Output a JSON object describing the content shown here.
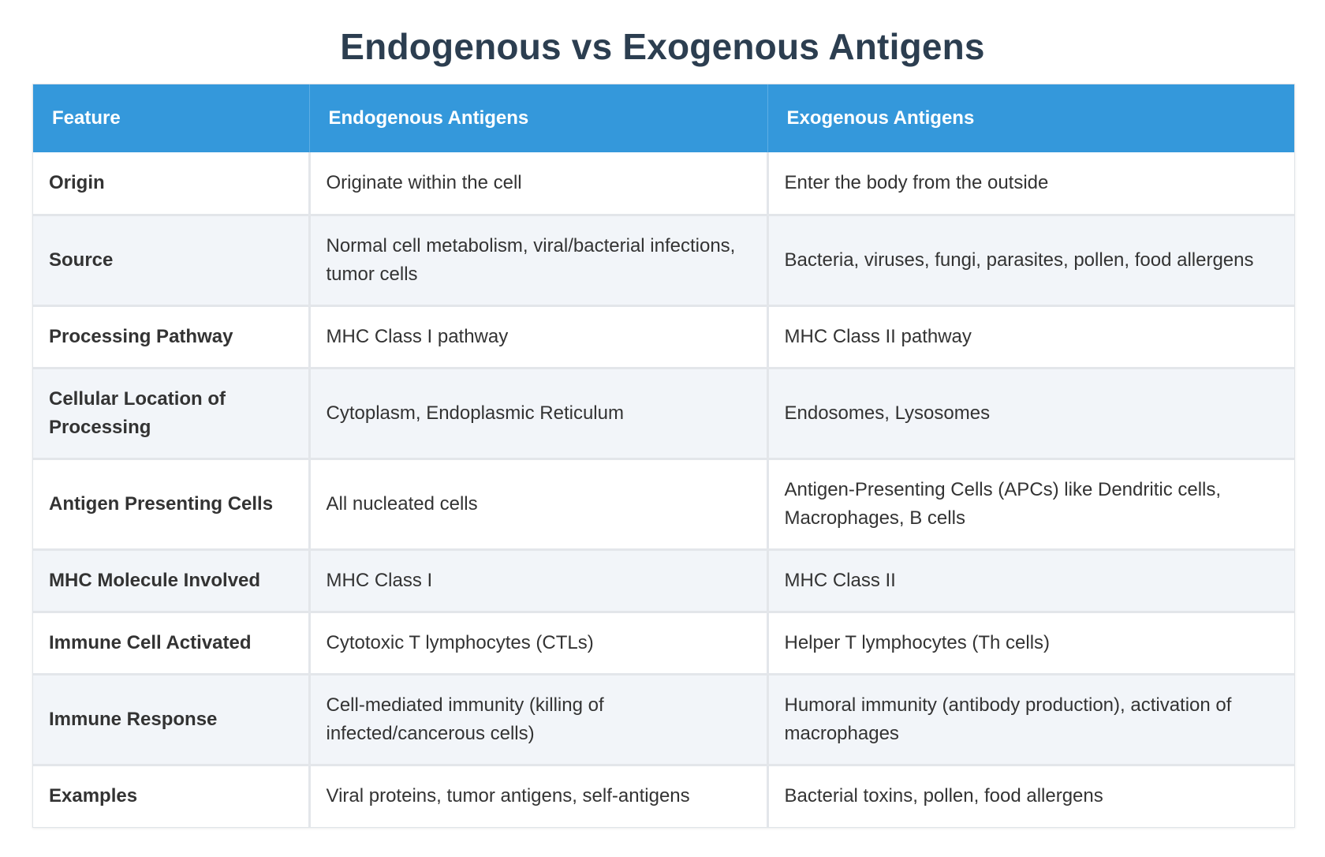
{
  "title": "Endogenous vs Exogenous Antigens",
  "table": {
    "headers": [
      "Feature",
      "Endogenous Antigens",
      "Exogenous Antigens"
    ],
    "rows": [
      {
        "feature": "Origin",
        "endogenous": "Originate within the cell",
        "exogenous": "Enter the body from the outside"
      },
      {
        "feature": "Source",
        "endogenous": "Normal cell metabolism, viral/bacterial infections, tumor cells",
        "exogenous": "Bacteria, viruses, fungi, parasites, pollen, food allergens"
      },
      {
        "feature": "Processing Pathway",
        "endogenous": "MHC Class I pathway",
        "exogenous": "MHC Class II pathway"
      },
      {
        "feature": "Cellular Location of Processing",
        "endogenous": "Cytoplasm, Endoplasmic Reticulum",
        "exogenous": "Endosomes, Lysosomes"
      },
      {
        "feature": "Antigen Presenting Cells",
        "endogenous": "All nucleated cells",
        "exogenous": "Antigen-Presenting Cells (APCs) like Dendritic cells, Macrophages, B cells"
      },
      {
        "feature": "MHC Molecule Involved",
        "endogenous": "MHC Class I",
        "exogenous": "MHC Class II"
      },
      {
        "feature": "Immune Cell Activated",
        "endogenous": "Cytotoxic T lymphocytes (CTLs)",
        "exogenous": "Helper T lymphocytes (Th cells)"
      },
      {
        "feature": "Immune Response",
        "endogenous": "Cell-mediated immunity (killing of infected/cancerous cells)",
        "exogenous": "Humoral immunity (antibody production), activation of macrophages"
      },
      {
        "feature": "Examples",
        "endogenous": "Viral proteins, tumor antigens, self-antigens",
        "exogenous": "Bacterial toxins, pollen, food allergens"
      }
    ]
  },
  "colors": {
    "title": "#2c3e50",
    "header_bg": "#3498db",
    "header_text": "#ffffff",
    "row_alt_bg": "#f2f5f9",
    "grid": "#e3e6ea"
  }
}
